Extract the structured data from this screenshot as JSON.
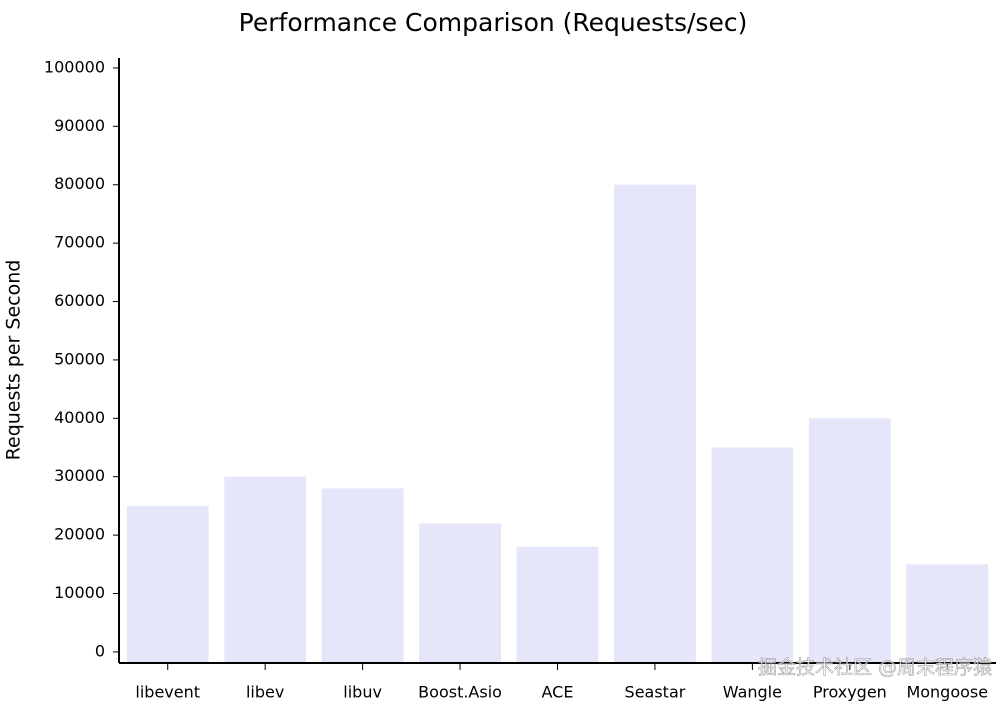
{
  "chart_data": {
    "type": "bar",
    "title": "Performance Comparison (Requests/sec)",
    "y_label": "Requests per Second",
    "categories": [
      "libevent",
      "libev",
      "libuv",
      "Boost.Asio",
      "ACE",
      "Seastar",
      "Wangle",
      "Proxygen",
      "Mongoose"
    ],
    "values": [
      25000,
      30000,
      28000,
      22000,
      18000,
      80000,
      35000,
      40000,
      15000
    ],
    "color": "#e6e6fa",
    "ylim": [
      -1900,
      101700
    ],
    "yticks": [
      0,
      10000,
      20000,
      30000,
      40000,
      50000,
      60000,
      70000,
      80000,
      90000,
      100000
    ],
    "watermark": "掘金技术社区 @周末程序猿"
  }
}
